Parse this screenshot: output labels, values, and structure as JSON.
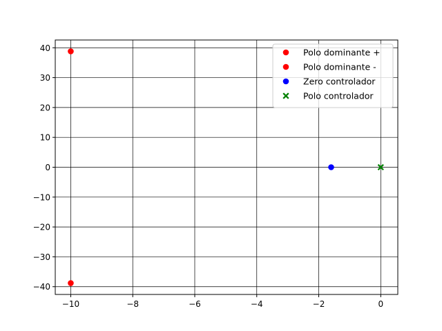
{
  "chart_data": {
    "type": "scatter",
    "title": "",
    "xlabel": "",
    "ylabel": "",
    "xlim": [
      -10.5,
      0.55
    ],
    "ylim": [
      -42.6,
      42.6
    ],
    "xticks": [
      -10,
      -8,
      -6,
      -4,
      -2,
      0
    ],
    "yticks": [
      -40,
      -30,
      -20,
      -10,
      0,
      10,
      20,
      30,
      40
    ],
    "xtick_labels": [
      "−10",
      "−8",
      "−6",
      "−4",
      "−2",
      "0"
    ],
    "ytick_labels": [
      "−40",
      "−30",
      "−20",
      "−10",
      "0",
      "10",
      "20",
      "30",
      "40"
    ],
    "grid": true,
    "legend_position": "top-right",
    "series": [
      {
        "name": "Polo dominante +",
        "marker": "circle",
        "color": "#ff0000",
        "points": [
          [
            -10,
            38.8
          ]
        ]
      },
      {
        "name": "Polo dominante -",
        "marker": "circle",
        "color": "#ff0000",
        "points": [
          [
            -10,
            -38.8
          ]
        ]
      },
      {
        "name": "Zero controlador",
        "marker": "circle",
        "color": "#0000ff",
        "points": [
          [
            -1.6,
            0
          ]
        ]
      },
      {
        "name": "Polo controlador",
        "marker": "x",
        "color": "#008000",
        "points": [
          [
            0,
            0
          ]
        ]
      }
    ]
  }
}
